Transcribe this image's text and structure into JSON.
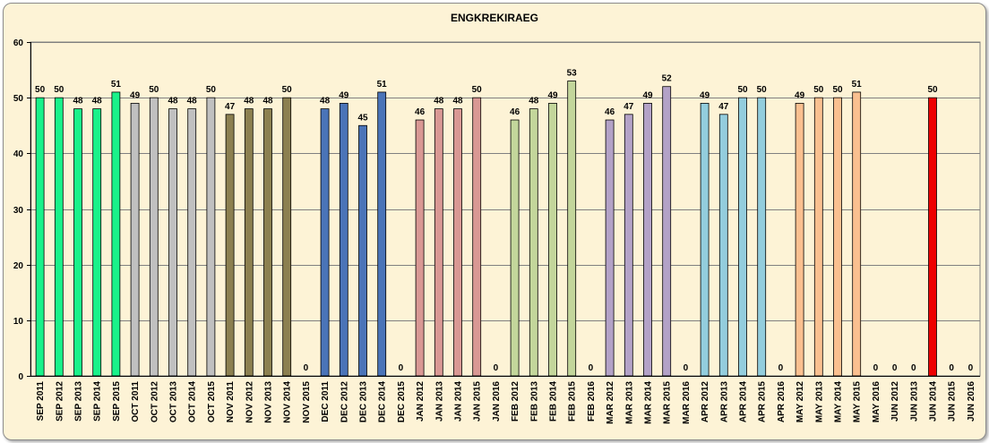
{
  "chart_data": {
    "type": "bar",
    "title": "ENGKREKIRAEG",
    "xlabel": "",
    "ylabel": "",
    "ylim": [
      0,
      60
    ],
    "yticks": [
      0,
      10,
      20,
      30,
      40,
      50,
      60
    ],
    "grid": true,
    "legend": "none",
    "categories": [
      "SEP 2011",
      "SEP 2012",
      "SEP 2013",
      "SEP 2014",
      "SEP 2015",
      "OCT 2011",
      "OCT 2012",
      "OCT 2013",
      "OCT 2014",
      "OCT 2015",
      "NOV 2011",
      "NOV 2012",
      "NOV 2013",
      "NOV 2014",
      "NOV 2015",
      "DEC 2011",
      "DEC 2012",
      "DEC 2013",
      "DEC 2014",
      "DEC 2015",
      "JAN 2012",
      "JAN 2013",
      "JAN 2014",
      "JAN 2015",
      "JAN 2016",
      "FEB 2012",
      "FEB 2013",
      "FEB 2014",
      "FEB 2015",
      "FEB 2016",
      "MAR 2012",
      "MAR 2013",
      "MAR 2014",
      "MAR 2015",
      "MAR 2016",
      "APR 2012",
      "APR 2013",
      "APR 2014",
      "APR 2015",
      "APR 2016",
      "MAY 2012",
      "MAY 2013",
      "MAY 2014",
      "MAY 2015",
      "MAY 2016",
      "JUN 2012",
      "JUN 2013",
      "JUN 2014",
      "JUN 2015",
      "JUN 2016"
    ],
    "values": [
      50,
      50,
      48,
      48,
      51,
      49,
      50,
      48,
      48,
      50,
      47,
      48,
      48,
      50,
      0,
      48,
      49,
      45,
      51,
      0,
      46,
      48,
      48,
      50,
      0,
      46,
      48,
      49,
      53,
      0,
      46,
      47,
      49,
      52,
      0,
      49,
      47,
      50,
      50,
      0,
      49,
      50,
      50,
      51,
      0,
      0,
      0,
      50,
      0,
      0
    ],
    "colors": [
      "#19f28a",
      "#19f28a",
      "#19f28a",
      "#19f28a",
      "#19f28a",
      "#c0c0c0",
      "#c0c0c0",
      "#c0c0c0",
      "#c0c0c0",
      "#c0c0c0",
      "#8c8050",
      "#8c8050",
      "#8c8050",
      "#8c8050",
      "#8c8050",
      "#4a74b8",
      "#4a74b8",
      "#4a74b8",
      "#4a74b8",
      "#4a74b8",
      "#d99894",
      "#d99894",
      "#d99894",
      "#d99894",
      "#d99894",
      "#c3d69b",
      "#c3d69b",
      "#c3d69b",
      "#c3d69b",
      "#c3d69b",
      "#b3a2c7",
      "#b3a2c7",
      "#b3a2c7",
      "#b3a2c7",
      "#b3a2c7",
      "#93cddd",
      "#93cddd",
      "#93cddd",
      "#93cddd",
      "#93cddd",
      "#fac090",
      "#fac090",
      "#fac090",
      "#fac090",
      "#fac090",
      "#ee0000",
      "#ee0000",
      "#ee0000",
      "#ee0000",
      "#ee0000"
    ]
  }
}
